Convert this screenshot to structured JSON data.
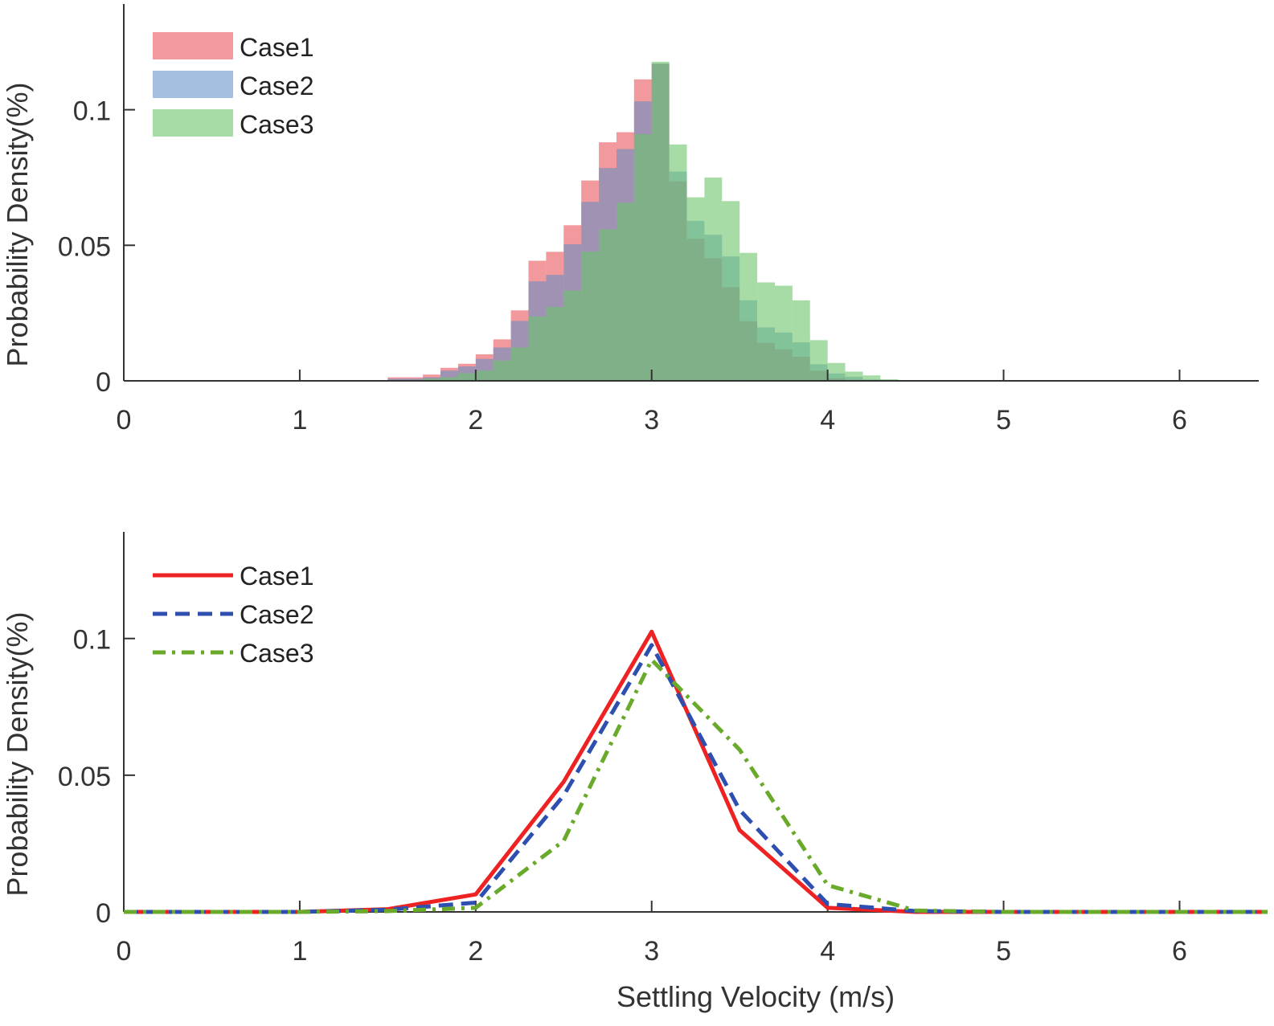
{
  "chart_data": [
    {
      "type": "histogram",
      "ylabel": "Probability Density(%)",
      "xlabel": "",
      "xlim": [
        0,
        6.45
      ],
      "ylim": [
        0,
        0.139
      ],
      "xticks": [
        0,
        1,
        2,
        3,
        4,
        5,
        6
      ],
      "yticks": [
        0,
        0.05,
        0.1
      ],
      "ytick_labels": [
        "0",
        "0.05",
        "0.1"
      ],
      "legend_placement": "top-left",
      "bin_width": 0.1,
      "bin_starts": [
        1.5,
        1.6,
        1.7,
        1.8,
        1.9,
        2.0,
        2.1,
        2.2,
        2.3,
        2.4,
        2.5,
        2.6,
        2.7,
        2.8,
        2.9,
        3.0,
        3.1,
        3.2,
        3.3,
        3.4,
        3.5,
        3.6,
        3.7,
        3.8,
        3.9,
        4.0,
        4.1,
        4.2,
        4.3,
        4.4
      ],
      "series": [
        {
          "name": "Case1",
          "color": "#e8555a",
          "opacity": 0.6,
          "values": [
            0.0013,
            0.0013,
            0.0023,
            0.0048,
            0.0063,
            0.0098,
            0.0153,
            0.026,
            0.0443,
            0.0476,
            0.0574,
            0.0739,
            0.088,
            0.0917,
            0.1112,
            0.117,
            0.0736,
            0.0524,
            0.0452,
            0.0345,
            0.022,
            0.014,
            0.0116,
            0.0089,
            0.0037,
            0.001,
            0.0004,
            0.0002,
            0.0002,
            0
          ]
        },
        {
          "name": "Case2",
          "color": "#5b8cc4",
          "opacity": 0.55,
          "values": [
            0.0008,
            0.0008,
            0.0013,
            0.0038,
            0.0053,
            0.0081,
            0.0123,
            0.0221,
            0.0367,
            0.0391,
            0.0504,
            0.066,
            0.0785,
            0.0855,
            0.1031,
            0.117,
            0.0772,
            0.059,
            0.0539,
            0.0459,
            0.0297,
            0.0197,
            0.0178,
            0.0142,
            0.0061,
            0.0027,
            0.0015,
            0.0005,
            0.0002,
            0
          ]
        },
        {
          "name": "Case3",
          "color": "#6cc46c",
          "opacity": 0.6,
          "values": [
            0.0002,
            0.0003,
            0.0008,
            0.0013,
            0.0028,
            0.0038,
            0.0075,
            0.0123,
            0.0237,
            0.0272,
            0.0333,
            0.0477,
            0.0559,
            0.0657,
            0.091,
            0.1177,
            0.0872,
            0.0677,
            0.075,
            0.0663,
            0.0472,
            0.0363,
            0.0351,
            0.0297,
            0.015,
            0.0066,
            0.0034,
            0.002,
            0.0006,
            0.0003
          ]
        }
      ]
    },
    {
      "type": "line",
      "ylabel": "Probability Density(%)",
      "xlabel": "Settling Velocity (m/s)",
      "xlim": [
        0,
        6.45
      ],
      "ylim": [
        0,
        0.139
      ],
      "xticks": [
        0,
        1,
        2,
        3,
        4,
        5,
        6
      ],
      "yticks": [
        0,
        0.05,
        0.1
      ],
      "ytick_labels": [
        "0",
        "0.05",
        "0.1"
      ],
      "legend_placement": "top-left",
      "x": [
        0,
        0.5,
        1,
        1.5,
        2,
        2.5,
        3,
        3.5,
        4,
        4.5,
        5,
        5.5,
        6,
        6.5
      ],
      "series": [
        {
          "name": "Case1",
          "color": "#ee2222",
          "style": "solid",
          "values": [
            0,
            0,
            0,
            0.001,
            0.0064,
            0.0476,
            0.1025,
            0.0299,
            0.0015,
            0,
            0,
            0,
            0,
            0
          ]
        },
        {
          "name": "Case2",
          "color": "#2e4fb0",
          "style": "dashed",
          "values": [
            0,
            0,
            0,
            0.0008,
            0.0034,
            0.0426,
            0.0976,
            0.0373,
            0.0029,
            0.0003,
            0,
            0,
            0,
            0
          ]
        },
        {
          "name": "Case3",
          "color": "#6aaa2a",
          "style": "dash-dot",
          "values": [
            0,
            0,
            0,
            0.0003,
            0.0015,
            0.026,
            0.0922,
            0.0593,
            0.0098,
            0.0005,
            0,
            0,
            0,
            0
          ]
        }
      ]
    }
  ]
}
